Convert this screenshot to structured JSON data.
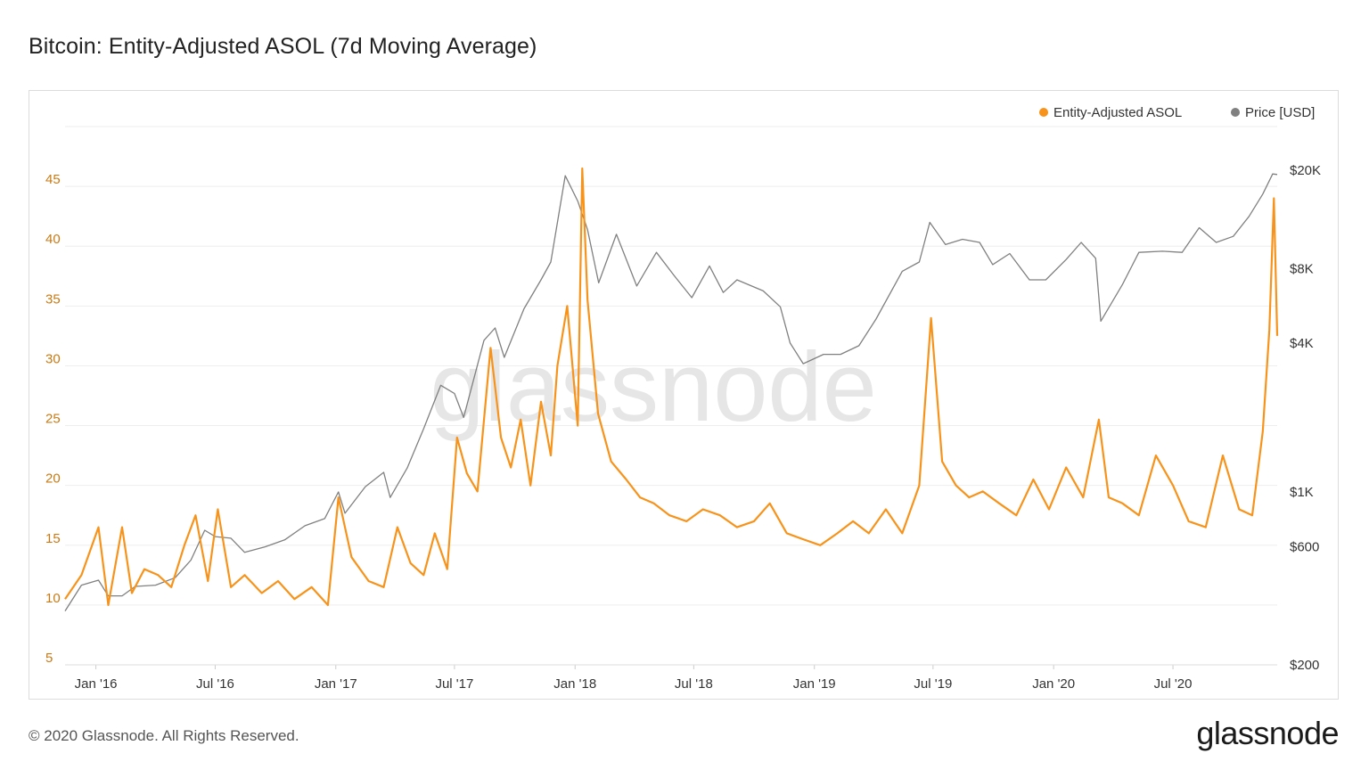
{
  "title": "Bitcoin: Entity-Adjusted ASOL (7d Moving Average)",
  "footer": {
    "copyright": "© 2020 Glassnode. All Rights Reserved.",
    "logo": "glassnode"
  },
  "watermark": "glassnode",
  "chart_data": {
    "type": "line",
    "title": "Bitcoin: Entity-Adjusted ASOL (7d Moving Average)",
    "legend_position": "top-right",
    "grid": true,
    "x_ticks": [
      "Jan '16",
      "Jul '16",
      "Jan '17",
      "Jul '17",
      "Jan '18",
      "Jul '18",
      "Jan '19",
      "Jul '19",
      "Jan '20",
      "Jul '20"
    ],
    "x_range": [
      "2015-11-15",
      "2020-12-07"
    ],
    "y_left": {
      "label": "",
      "ticks": [
        5,
        10,
        15,
        20,
        25,
        30,
        35,
        40,
        45
      ],
      "range": [
        5,
        50
      ]
    },
    "y_right": {
      "label": "",
      "scale": "log",
      "ticks": [
        {
          "value": 200,
          "label": "$200"
        },
        {
          "value": 600,
          "label": "$600"
        },
        {
          "value": 1000,
          "label": "$1K"
        },
        {
          "value": 4000,
          "label": "$4K"
        },
        {
          "value": 8000,
          "label": "$8K"
        },
        {
          "value": 20000,
          "label": "$20K"
        }
      ],
      "range": [
        200,
        30000
      ]
    },
    "series": [
      {
        "name": "Entity-Adjusted ASOL",
        "color": "#f7931a",
        "axis": "left",
        "x": [
          "2015-11-15",
          "2015-12-10",
          "2016-01-05",
          "2016-01-20",
          "2016-02-10",
          "2016-02-25",
          "2016-03-15",
          "2016-04-05",
          "2016-04-25",
          "2016-05-15",
          "2016-06-01",
          "2016-06-20",
          "2016-07-05",
          "2016-07-25",
          "2016-08-15",
          "2016-09-10",
          "2016-10-05",
          "2016-10-30",
          "2016-11-25",
          "2016-12-20",
          "2017-01-05",
          "2017-01-25",
          "2017-02-20",
          "2017-03-15",
          "2017-04-05",
          "2017-04-25",
          "2017-05-15",
          "2017-06-01",
          "2017-06-20",
          "2017-07-05",
          "2017-07-20",
          "2017-08-05",
          "2017-08-25",
          "2017-09-10",
          "2017-09-25",
          "2017-10-10",
          "2017-10-25",
          "2017-11-10",
          "2017-11-25",
          "2017-12-05",
          "2017-12-20",
          "2018-01-05",
          "2018-01-12",
          "2018-01-20",
          "2018-02-05",
          "2018-02-25",
          "2018-03-20",
          "2018-04-10",
          "2018-05-01",
          "2018-05-25",
          "2018-06-20",
          "2018-07-15",
          "2018-08-10",
          "2018-09-05",
          "2018-10-01",
          "2018-10-25",
          "2018-11-20",
          "2018-12-15",
          "2019-01-10",
          "2019-02-05",
          "2019-03-01",
          "2019-03-25",
          "2019-04-20",
          "2019-05-15",
          "2019-06-10",
          "2019-06-28",
          "2019-07-15",
          "2019-08-05",
          "2019-08-25",
          "2019-09-15",
          "2019-10-10",
          "2019-11-05",
          "2019-12-01",
          "2019-12-25",
          "2020-01-20",
          "2020-02-15",
          "2020-03-10",
          "2020-03-25",
          "2020-04-15",
          "2020-05-10",
          "2020-06-05",
          "2020-07-01",
          "2020-07-25",
          "2020-08-20",
          "2020-09-15",
          "2020-10-10",
          "2020-10-30",
          "2020-11-15",
          "2020-11-25",
          "2020-12-02",
          "2020-12-07"
        ],
        "values": [
          10.5,
          12.5,
          16.5,
          10.0,
          16.5,
          11.0,
          13.0,
          12.5,
          11.5,
          15.0,
          17.5,
          12.0,
          18.0,
          11.5,
          12.5,
          11.0,
          12.0,
          10.5,
          11.5,
          10.0,
          19.0,
          14.0,
          12.0,
          11.5,
          16.5,
          13.5,
          12.5,
          16.0,
          13.0,
          24.0,
          21.0,
          19.5,
          31.5,
          24.0,
          21.5,
          25.5,
          20.0,
          27.0,
          22.5,
          30.0,
          35.0,
          25.0,
          46.5,
          35.5,
          26.0,
          22.0,
          20.5,
          19.0,
          18.5,
          17.5,
          17.0,
          18.0,
          17.5,
          16.5,
          17.0,
          18.5,
          16.0,
          15.5,
          15.0,
          16.0,
          17.0,
          16.0,
          18.0,
          16.0,
          20.0,
          34.0,
          22.0,
          20.0,
          19.0,
          19.5,
          18.5,
          17.5,
          20.5,
          18.0,
          21.5,
          19.0,
          25.5,
          19.0,
          18.5,
          17.5,
          22.5,
          20.0,
          17.0,
          16.5,
          22.5,
          18.0,
          17.5,
          24.5,
          33.0,
          44.0,
          32.5
        ]
      },
      {
        "name": "Price [USD]",
        "color": "#808080",
        "axis": "right",
        "x": [
          "2015-11-15",
          "2015-12-10",
          "2016-01-05",
          "2016-01-20",
          "2016-02-10",
          "2016-03-01",
          "2016-04-01",
          "2016-05-01",
          "2016-05-25",
          "2016-06-15",
          "2016-07-01",
          "2016-07-25",
          "2016-08-15",
          "2016-09-15",
          "2016-10-15",
          "2016-11-15",
          "2016-12-15",
          "2017-01-05",
          "2017-01-15",
          "2017-02-15",
          "2017-03-15",
          "2017-03-25",
          "2017-04-20",
          "2017-05-15",
          "2017-06-10",
          "2017-07-01",
          "2017-07-15",
          "2017-08-15",
          "2017-09-01",
          "2017-09-15",
          "2017-10-15",
          "2017-11-10",
          "2017-11-25",
          "2017-12-17",
          "2018-01-05",
          "2018-01-20",
          "2018-02-06",
          "2018-03-05",
          "2018-04-05",
          "2018-05-05",
          "2018-06-01",
          "2018-06-28",
          "2018-07-25",
          "2018-08-15",
          "2018-09-05",
          "2018-10-15",
          "2018-11-10",
          "2018-11-25",
          "2018-12-15",
          "2019-01-15",
          "2019-02-10",
          "2019-03-10",
          "2019-04-05",
          "2019-05-15",
          "2019-06-10",
          "2019-06-26",
          "2019-07-20",
          "2019-08-15",
          "2019-09-10",
          "2019-09-30",
          "2019-10-26",
          "2019-11-25",
          "2019-12-20",
          "2020-01-20",
          "2020-02-12",
          "2020-03-05",
          "2020-03-13",
          "2020-04-15",
          "2020-05-10",
          "2020-06-15",
          "2020-07-15",
          "2020-08-10",
          "2020-09-05",
          "2020-10-01",
          "2020-10-25",
          "2020-11-15",
          "2020-11-30",
          "2020-12-07"
        ],
        "values": [
          330,
          420,
          440,
          380,
          380,
          415,
          420,
          450,
          530,
          700,
          660,
          650,
          570,
          600,
          640,
          730,
          780,
          1000,
          820,
          1050,
          1200,
          950,
          1250,
          1800,
          2700,
          2500,
          2000,
          4100,
          4600,
          3500,
          5500,
          7200,
          8500,
          19000,
          15000,
          11500,
          7000,
          11000,
          6800,
          9300,
          7500,
          6100,
          8200,
          6400,
          7200,
          6500,
          5600,
          4000,
          3300,
          3600,
          3600,
          3900,
          5000,
          7800,
          8500,
          12300,
          10000,
          10500,
          10200,
          8300,
          9200,
          7200,
          7200,
          8700,
          10200,
          8800,
          4900,
          6900,
          9300,
          9400,
          9300,
          11700,
          10200,
          10800,
          13000,
          16000,
          19300,
          19200
        ]
      }
    ]
  }
}
